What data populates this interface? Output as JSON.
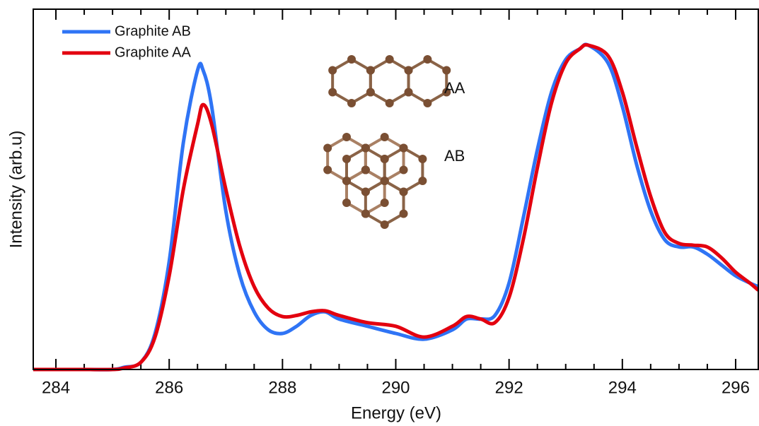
{
  "chart_data": {
    "type": "line",
    "x_label": "Energy (eV)",
    "y_label": "Intensity (arb.u)",
    "x": [
      283.6,
      284,
      284.5,
      285,
      285.2,
      285.5,
      285.75,
      286,
      286.25,
      286.5,
      286.6,
      286.75,
      287,
      287.25,
      287.5,
      287.75,
      288,
      288.25,
      288.5,
      288.75,
      289,
      289.5,
      290,
      290.5,
      291,
      291.25,
      291.5,
      291.75,
      292,
      292.25,
      292.5,
      292.75,
      293,
      293.25,
      293.4,
      293.75,
      294,
      294.25,
      294.5,
      294.75,
      295,
      295.25,
      295.5,
      295.75,
      296,
      296.25,
      296.4
    ],
    "series": [
      {
        "name": "Graphite AB",
        "color": "#2f74f5",
        "values": [
          0,
          0,
          0,
          0,
          0.006,
          0.02,
          0.1,
          0.3,
          0.63,
          0.83,
          0.83,
          0.73,
          0.44,
          0.26,
          0.16,
          0.11,
          0.1,
          0.12,
          0.15,
          0.16,
          0.14,
          0.12,
          0.1,
          0.084,
          0.11,
          0.14,
          0.14,
          0.15,
          0.24,
          0.42,
          0.61,
          0.77,
          0.86,
          0.89,
          0.9,
          0.85,
          0.73,
          0.57,
          0.44,
          0.36,
          0.34,
          0.34,
          0.32,
          0.29,
          0.26,
          0.24,
          0.23
        ]
      },
      {
        "name": "Graphite AA",
        "color": "#e3000f",
        "values": [
          0,
          0,
          0,
          0,
          0.004,
          0.02,
          0.09,
          0.26,
          0.5,
          0.68,
          0.735,
          0.68,
          0.5,
          0.34,
          0.23,
          0.17,
          0.147,
          0.15,
          0.16,
          0.163,
          0.15,
          0.13,
          0.12,
          0.09,
          0.12,
          0.147,
          0.14,
          0.13,
          0.2,
          0.36,
          0.56,
          0.74,
          0.85,
          0.89,
          0.9,
          0.87,
          0.77,
          0.62,
          0.48,
          0.38,
          0.35,
          0.345,
          0.34,
          0.31,
          0.27,
          0.24,
          0.22
        ]
      }
    ],
    "xlim": [
      283.6,
      296.4
    ],
    "ylim": [
      0,
      1
    ],
    "xticks": [
      284,
      286,
      288,
      290,
      292,
      294,
      296
    ],
    "xminorticks": [
      284.5,
      285,
      285.5,
      286.5,
      287,
      287.5,
      288.5,
      289,
      289.5,
      290.5,
      291,
      291.5,
      292.5,
      293,
      293.5,
      294.5,
      295,
      295.5
    ],
    "annotations": [
      "AA",
      "AB"
    ],
    "legend": "upper left"
  }
}
